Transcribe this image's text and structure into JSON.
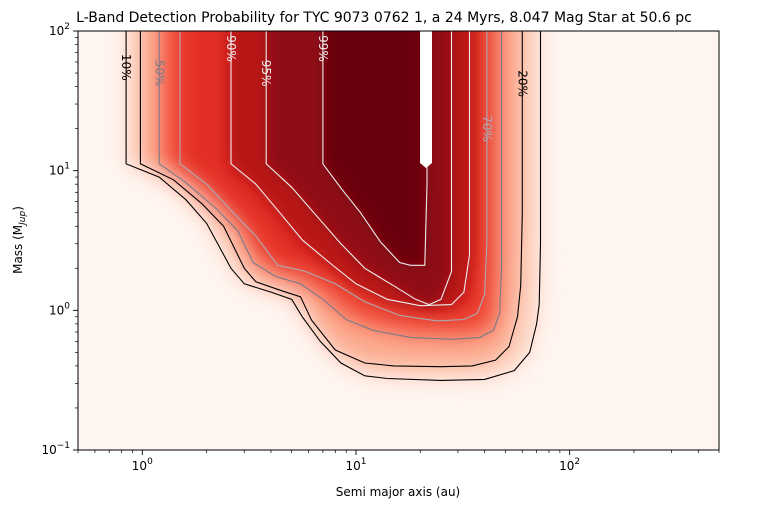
{
  "chart_data": {
    "type": "heatmap",
    "title": "L-Band Detection Probability for TYC 9073 0762 1, a 24 Myrs, 8.047 Mag Star at 50.6 pc",
    "xlabel": "Semi major axis (au)",
    "ylabel_main": "Mass (M",
    "ylabel_sub": "Jup",
    "ylabel_close": ")",
    "x_scale": "log",
    "y_scale": "log",
    "xlim": [
      0.5,
      500
    ],
    "ylim": [
      0.1,
      100
    ],
    "x_ticks": [
      {
        "value": 1,
        "base": "10",
        "exp": "0"
      },
      {
        "value": 10,
        "base": "10",
        "exp": "1"
      },
      {
        "value": 100,
        "base": "10",
        "exp": "2"
      }
    ],
    "y_ticks": [
      {
        "value": 0.1,
        "base": "10",
        "exp": "−1"
      },
      {
        "value": 1,
        "base": "10",
        "exp": "0"
      },
      {
        "value": 10,
        "base": "10",
        "exp": "1"
      },
      {
        "value": 100,
        "base": "10",
        "exp": "2"
      }
    ],
    "colormap": "Reds",
    "contours": [
      {
        "level": "10%",
        "color": "#000000",
        "points": [
          [
            0.84,
            100
          ],
          [
            0.84,
            11.2
          ],
          [
            1.2,
            9.0
          ],
          [
            1.6,
            6.2
          ],
          [
            2.0,
            4.2
          ],
          [
            2.6,
            2.0
          ],
          [
            3.0,
            1.55
          ],
          [
            4.0,
            1.35
          ],
          [
            5.0,
            1.2
          ],
          [
            5.6,
            0.9
          ],
          [
            6.8,
            0.6
          ],
          [
            8.5,
            0.42
          ],
          [
            11,
            0.34
          ],
          [
            14,
            0.325
          ],
          [
            25,
            0.315
          ],
          [
            40,
            0.32
          ],
          [
            55,
            0.37
          ],
          [
            65,
            0.5
          ],
          [
            70,
            0.8
          ],
          [
            72,
            1.1
          ],
          [
            73,
            3
          ],
          [
            73,
            100
          ]
        ]
      },
      {
        "level": "20%",
        "color": "#000000",
        "points": [
          [
            0.98,
            100
          ],
          [
            0.98,
            11.2
          ],
          [
            1.4,
            8.6
          ],
          [
            1.9,
            5.8
          ],
          [
            2.4,
            4.0
          ],
          [
            3.0,
            2.0
          ],
          [
            3.4,
            1.6
          ],
          [
            4.5,
            1.38
          ],
          [
            5.5,
            1.25
          ],
          [
            6.2,
            0.85
          ],
          [
            8,
            0.52
          ],
          [
            11,
            0.42
          ],
          [
            15,
            0.4
          ],
          [
            25,
            0.395
          ],
          [
            35,
            0.4
          ],
          [
            45,
            0.44
          ],
          [
            52,
            0.55
          ],
          [
            57,
            0.9
          ],
          [
            59,
            1.5
          ],
          [
            60,
            5
          ],
          [
            60,
            100
          ]
        ]
      },
      {
        "level": "50%",
        "color": "#7a7a88",
        "points": [
          [
            1.2,
            100
          ],
          [
            1.2,
            11.2
          ],
          [
            1.6,
            8.2
          ],
          [
            2.2,
            5.4
          ],
          [
            2.8,
            3.7
          ],
          [
            3.3,
            2.2
          ],
          [
            4.2,
            1.75
          ],
          [
            5.5,
            1.55
          ],
          [
            7,
            1.2
          ],
          [
            9,
            0.86
          ],
          [
            12,
            0.72
          ],
          [
            18,
            0.64
          ],
          [
            28,
            0.62
          ],
          [
            38,
            0.64
          ],
          [
            44,
            0.72
          ],
          [
            47,
            0.95
          ],
          [
            48,
            2
          ],
          [
            48,
            100
          ]
        ]
      },
      {
        "level": "70%",
        "color": "#aaaab4",
        "points": [
          [
            1.5,
            100
          ],
          [
            1.5,
            11.2
          ],
          [
            2.0,
            8.0
          ],
          [
            2.6,
            5.2
          ],
          [
            3.4,
            3.4
          ],
          [
            4.3,
            2.1
          ],
          [
            5.8,
            1.9
          ],
          [
            8,
            1.55
          ],
          [
            11,
            1.15
          ],
          [
            16,
            0.92
          ],
          [
            24,
            0.84
          ],
          [
            32,
            0.86
          ],
          [
            37,
            0.95
          ],
          [
            40,
            1.3
          ],
          [
            41,
            3
          ],
          [
            41,
            100
          ]
        ]
      },
      {
        "level": "90%",
        "color": "#eeeeee",
        "points": [
          [
            2.6,
            100
          ],
          [
            2.6,
            11.2
          ],
          [
            3.4,
            8.0
          ],
          [
            4.4,
            5.0
          ],
          [
            5.6,
            3.2
          ],
          [
            7.5,
            2.2
          ],
          [
            10,
            1.55
          ],
          [
            14,
            1.2
          ],
          [
            20,
            1.08
          ],
          [
            28,
            1.1
          ],
          [
            32,
            1.35
          ],
          [
            34,
            2.5
          ],
          [
            34,
            100
          ]
        ]
      },
      {
        "level": "95%",
        "color": "#eeeeee",
        "points": [
          [
            3.8,
            100
          ],
          [
            3.8,
            11.2
          ],
          [
            5.0,
            7.6
          ],
          [
            6.5,
            4.8
          ],
          [
            8.5,
            3.0
          ],
          [
            11,
            2.0
          ],
          [
            15,
            1.5
          ],
          [
            19,
            1.2
          ],
          [
            22,
            1.1
          ],
          [
            25,
            1.2
          ],
          [
            28,
            1.9
          ],
          [
            28,
            100
          ]
        ]
      },
      {
        "level": "99%",
        "color": "#eeeeee",
        "points": [
          [
            7.0,
            100
          ],
          [
            7.0,
            11.2
          ],
          [
            8.5,
            7.5
          ],
          [
            10.5,
            5.0
          ],
          [
            13,
            3.1
          ],
          [
            16,
            2.2
          ],
          [
            18,
            2.1
          ],
          [
            21,
            2.1
          ],
          [
            21.5,
            8
          ],
          [
            21.5,
            100
          ]
        ]
      }
    ],
    "contour_labels": [
      {
        "text": "10%",
        "x": 0.84,
        "y": 55,
        "color": "#000000",
        "rotate": 90
      },
      {
        "text": "50%",
        "x": 1.2,
        "y": 50,
        "color": "#7a7a88",
        "rotate": 90
      },
      {
        "text": "90%",
        "x": 2.6,
        "y": 75,
        "color": "#eeeeee",
        "rotate": 90
      },
      {
        "text": "95%",
        "x": 3.8,
        "y": 50,
        "color": "#eeeeee",
        "rotate": 90
      },
      {
        "text": "99%",
        "x": 7.0,
        "y": 75,
        "color": "#eeeeee",
        "rotate": 90
      },
      {
        "text": "70%",
        "x": 41,
        "y": 20,
        "color": "#aaaab4",
        "rotate": 90
      },
      {
        "text": "20%",
        "x": 60,
        "y": 42,
        "color": "#000000",
        "rotate": 90
      }
    ]
  }
}
